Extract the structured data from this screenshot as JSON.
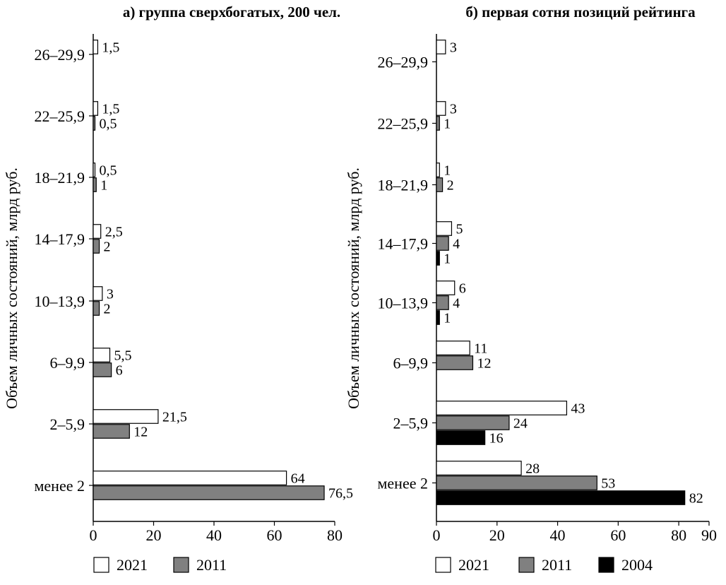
{
  "colors": {
    "2021": "#ffffff",
    "2011": "#808080",
    "2004": "#000000"
  },
  "chart_data": [
    {
      "type": "bar",
      "orientation": "horizontal",
      "title": "а) группа сверхбогатых, 200 чел.",
      "ylabel": "Объем личных состояний, млрд руб.",
      "xlabel": "",
      "xlim": [
        0,
        80
      ],
      "xticks": [
        "0",
        "20",
        "40",
        "60",
        "80"
      ],
      "categories": [
        "26–29,9",
        "22–25,9",
        "18–21,9",
        "14–17,9",
        "10–13,9",
        "6–9,9",
        "2–5,9",
        "менее 2"
      ],
      "series": [
        {
          "name": "2021",
          "values": [
            1.5,
            1.5,
            0.5,
            2.5,
            3,
            5.5,
            21.5,
            64
          ],
          "labels": [
            "1,5",
            "1,5",
            "0,5",
            "2,5",
            "3",
            "5,5",
            "21,5",
            "64"
          ]
        },
        {
          "name": "2011",
          "values": [
            null,
            0.5,
            1,
            2,
            2,
            6,
            12,
            76.5
          ],
          "labels": [
            "",
            "0,5",
            "1",
            "2",
            "2",
            "6",
            "12",
            "76,5"
          ]
        }
      ],
      "legend": [
        "2021",
        "2011"
      ],
      "legend_position": "bottom"
    },
    {
      "type": "bar",
      "orientation": "horizontal",
      "title": "б) первая сотня позиций рейтинга",
      "ylabel": "Объем личных состояний, млрд руб.",
      "xlabel": "",
      "xlim": [
        0,
        90
      ],
      "xticks": [
        "0",
        "20",
        "40",
        "60",
        "80",
        "90"
      ],
      "categories": [
        "26–29,9",
        "22–25,9",
        "18–21,9",
        "14–17,9",
        "10–13,9",
        "6–9,9",
        "2–5,9",
        "менее 2"
      ],
      "series": [
        {
          "name": "2021",
          "values": [
            3,
            3,
            1,
            5,
            6,
            11,
            43,
            28
          ],
          "labels": [
            "3",
            "3",
            "1",
            "5",
            "6",
            "11",
            "43",
            "28"
          ]
        },
        {
          "name": "2011",
          "values": [
            null,
            1,
            2,
            4,
            4,
            12,
            24,
            53
          ],
          "labels": [
            "",
            "1",
            "2",
            "4",
            "4",
            "12",
            "24",
            "53"
          ]
        },
        {
          "name": "2004",
          "values": [
            null,
            null,
            null,
            1,
            1,
            null,
            16,
            82
          ],
          "labels": [
            "",
            "",
            "",
            "1",
            "1",
            "",
            "16",
            "82"
          ]
        }
      ],
      "legend": [
        "2021",
        "2011",
        "2004"
      ],
      "legend_position": "bottom"
    }
  ]
}
